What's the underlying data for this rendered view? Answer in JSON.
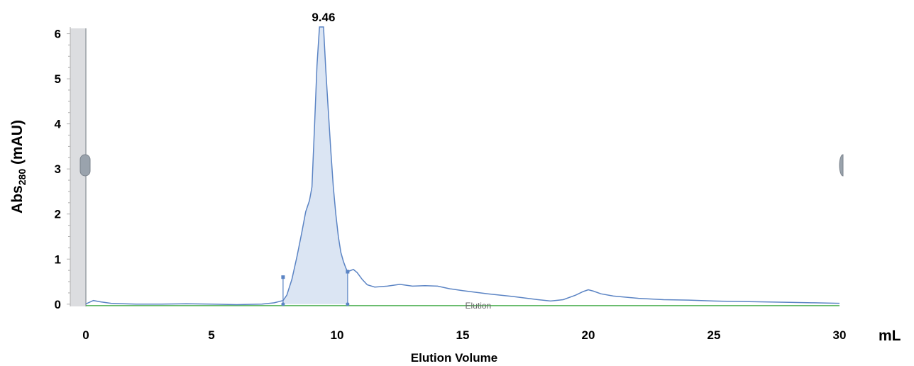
{
  "chart_data": {
    "type": "line",
    "title": "",
    "xlabel": "Elution Volume",
    "x_unit": "mL",
    "ylabel_parts": [
      "Abs",
      "280",
      " (mAU)"
    ],
    "xlim": [
      0,
      30
    ],
    "ylim": [
      -0.05,
      6.15
    ],
    "x_ticks": [
      0,
      5,
      10,
      15,
      20,
      25,
      30
    ],
    "y_ticks": [
      0,
      1,
      2,
      3,
      4,
      5,
      6
    ],
    "grid": false,
    "peak_label": "9.46",
    "faint_text": "Elution",
    "colors": {
      "line": "#5b84c4",
      "fill": "#dbe5f3",
      "baseline": "#4caf50",
      "scrollbar": "#dcdde0"
    },
    "peak_fill_range": [
      7.85,
      10.42
    ],
    "markers": [
      {
        "x": 7.85,
        "top": 0.6
      },
      {
        "x": 10.42,
        "top": 0.72
      }
    ],
    "series": [
      {
        "x": [
          0,
          0.05,
          0.3,
          0.6,
          1.0,
          1.5,
          2.0,
          3.0,
          4.0,
          5.0,
          6.0,
          7.0,
          7.5,
          7.85,
          8.0,
          8.2,
          8.4,
          8.6,
          8.75,
          8.9,
          9.0,
          9.1,
          9.2,
          9.3,
          9.4,
          9.46,
          9.55,
          9.65,
          9.75,
          9.85,
          9.95,
          10.05,
          10.15,
          10.25,
          10.35,
          10.42,
          10.55,
          10.65,
          10.8,
          11.0,
          11.2,
          11.5,
          12.0,
          12.5,
          13.0,
          13.5,
          14.0,
          14.5,
          15.0,
          16.0,
          17.0,
          18.0,
          18.5,
          19.0,
          19.5,
          19.8,
          20.0,
          20.2,
          20.5,
          21.0,
          22.0,
          23.0,
          24.0,
          25.0,
          26.0,
          27.0,
          28.0,
          29.0,
          30.0
        ],
        "values": [
          0.0,
          0.02,
          0.08,
          0.05,
          0.02,
          0.01,
          0.0,
          0.0,
          0.01,
          0.0,
          -0.01,
          0.0,
          0.03,
          0.08,
          0.2,
          0.55,
          1.05,
          1.6,
          2.05,
          2.3,
          2.6,
          3.9,
          5.3,
          6.15,
          6.15,
          6.15,
          5.2,
          4.3,
          3.4,
          2.6,
          2.0,
          1.5,
          1.15,
          0.95,
          0.8,
          0.72,
          0.75,
          0.77,
          0.7,
          0.55,
          0.43,
          0.38,
          0.4,
          0.44,
          0.4,
          0.41,
          0.4,
          0.34,
          0.3,
          0.23,
          0.17,
          0.1,
          0.07,
          0.1,
          0.2,
          0.28,
          0.32,
          0.29,
          0.23,
          0.18,
          0.13,
          0.1,
          0.09,
          0.07,
          0.06,
          0.05,
          0.04,
          0.03,
          0.02
        ]
      }
    ]
  }
}
